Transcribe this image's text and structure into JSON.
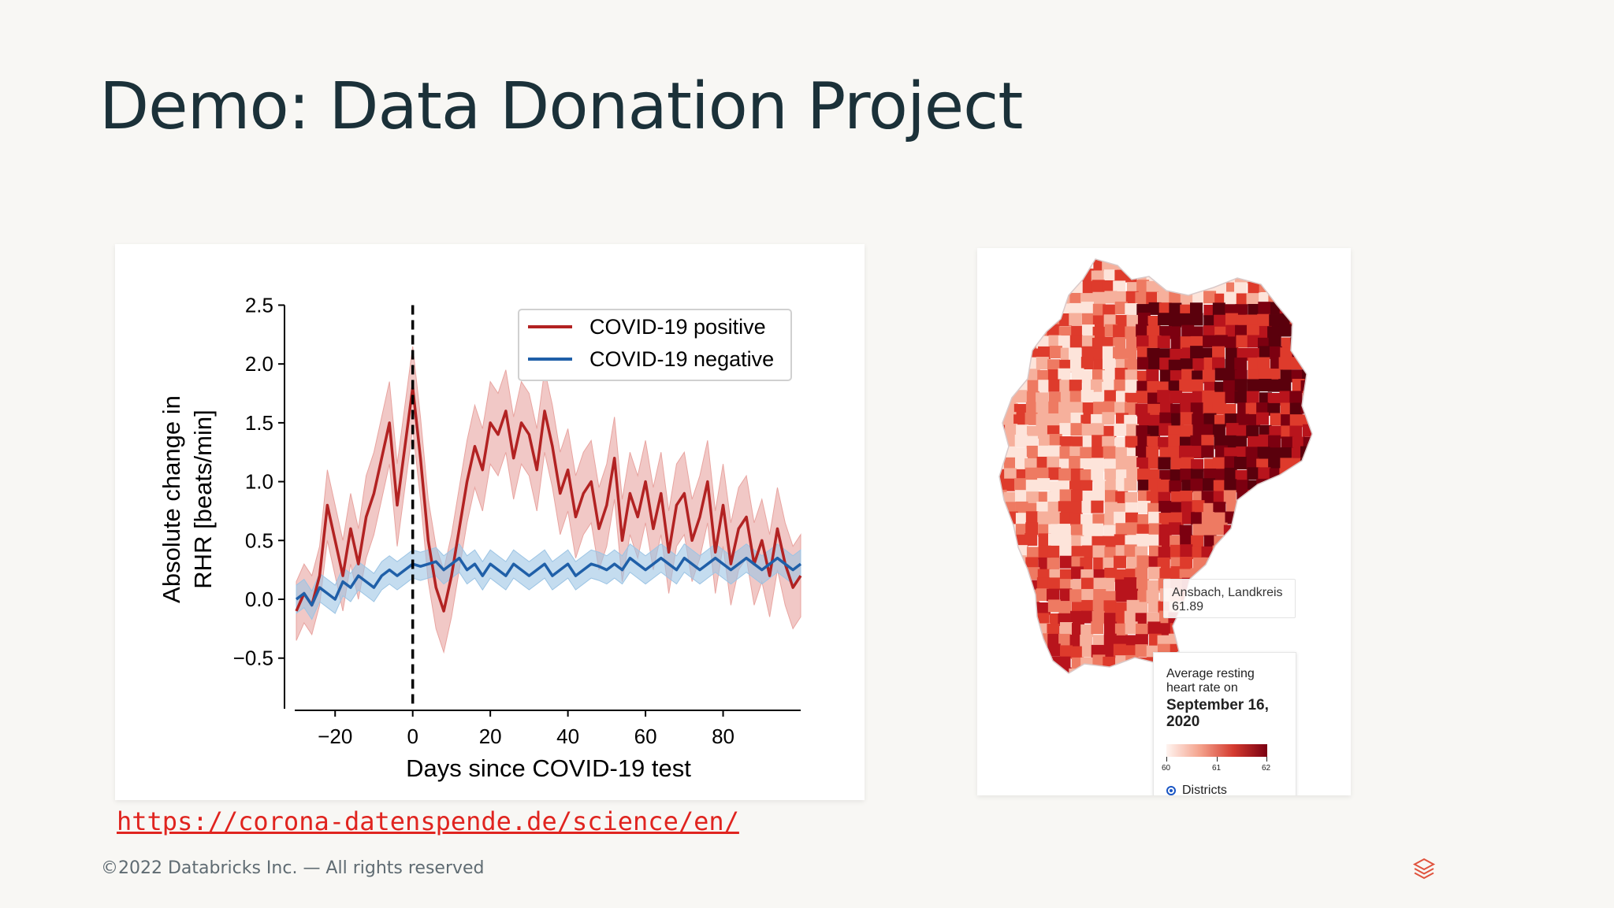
{
  "slide": {
    "title": "Demo: Data Donation Project",
    "link": "https://corona-datenspende.de/science/en/",
    "footer": "©2022 Databricks Inc. — All rights reserved",
    "logo_icon": "databricks-layers-icon"
  },
  "chart_data": {
    "type": "line",
    "title": "",
    "xlabel": "Days since COVID-19 test",
    "ylabel": "Absolute change in RHR [beats/min]",
    "xlim": [
      -30,
      100
    ],
    "ylim": [
      -0.85,
      2.55
    ],
    "xticks": [
      -20,
      0,
      20,
      40,
      60,
      80
    ],
    "xtick_labels": [
      "−20",
      "0",
      "20",
      "40",
      "60",
      "80"
    ],
    "yticks": [
      -0.5,
      0.0,
      0.5,
      1.0,
      1.5,
      2.0,
      2.5
    ],
    "ytick_labels": [
      "−0.5",
      "0.0",
      "0.5",
      "1.0",
      "1.5",
      "2.0",
      "2.5"
    ],
    "legend_position": "top-right",
    "vline": {
      "x": 0,
      "style": "dashed",
      "color": "#000000"
    },
    "series": [
      {
        "name": "COVID-19 positive",
        "color": "#b22222",
        "band_color": "#e8a4a0",
        "x": [
          -30,
          -28,
          -26,
          -24,
          -22,
          -20,
          -18,
          -16,
          -14,
          -12,
          -10,
          -8,
          -6,
          -4,
          -2,
          0,
          2,
          4,
          6,
          8,
          10,
          12,
          14,
          16,
          18,
          20,
          22,
          24,
          26,
          28,
          30,
          32,
          34,
          36,
          38,
          40,
          42,
          44,
          46,
          48,
          50,
          52,
          54,
          56,
          58,
          60,
          62,
          64,
          66,
          68,
          70,
          72,
          74,
          76,
          78,
          80,
          82,
          84,
          86,
          88,
          90,
          92,
          94,
          96,
          98,
          100
        ],
        "y": [
          -0.1,
          0.05,
          -0.05,
          0.2,
          0.8,
          0.5,
          0.2,
          0.6,
          0.3,
          0.7,
          0.9,
          1.2,
          1.5,
          0.8,
          1.3,
          1.8,
          1.2,
          0.5,
          0.1,
          -0.1,
          0.2,
          0.6,
          1.0,
          1.3,
          1.1,
          1.5,
          1.4,
          1.6,
          1.2,
          1.5,
          1.4,
          1.1,
          1.6,
          1.3,
          0.9,
          1.1,
          0.7,
          0.9,
          1.0,
          0.6,
          0.8,
          1.2,
          0.5,
          0.9,
          0.7,
          1.0,
          0.6,
          0.9,
          0.4,
          0.8,
          0.9,
          0.5,
          0.7,
          1.0,
          0.4,
          0.8,
          0.3,
          0.6,
          0.7,
          0.3,
          0.5,
          0.2,
          0.6,
          0.3,
          0.1,
          0.2
        ],
        "err": [
          0.25,
          0.25,
          0.25,
          0.25,
          0.3,
          0.3,
          0.3,
          0.3,
          0.3,
          0.35,
          0.35,
          0.35,
          0.35,
          0.35,
          0.35,
          0.35,
          0.35,
          0.35,
          0.35,
          0.35,
          0.35,
          0.35,
          0.35,
          0.35,
          0.35,
          0.35,
          0.35,
          0.35,
          0.35,
          0.35,
          0.35,
          0.35,
          0.35,
          0.35,
          0.35,
          0.35,
          0.35,
          0.35,
          0.35,
          0.35,
          0.35,
          0.35,
          0.35,
          0.35,
          0.35,
          0.35,
          0.35,
          0.35,
          0.35,
          0.35,
          0.35,
          0.35,
          0.35,
          0.35,
          0.35,
          0.35,
          0.35,
          0.35,
          0.35,
          0.35,
          0.35,
          0.35,
          0.35,
          0.35,
          0.35,
          0.35
        ]
      },
      {
        "name": "COVID-19 negative",
        "color": "#1f5fa8",
        "band_color": "#9cc4e4",
        "x": [
          -30,
          -28,
          -26,
          -24,
          -22,
          -20,
          -18,
          -16,
          -14,
          -12,
          -10,
          -8,
          -6,
          -4,
          -2,
          0,
          2,
          4,
          6,
          8,
          10,
          12,
          14,
          16,
          18,
          20,
          22,
          24,
          26,
          28,
          30,
          32,
          34,
          36,
          38,
          40,
          42,
          44,
          46,
          48,
          50,
          52,
          54,
          56,
          58,
          60,
          62,
          64,
          66,
          68,
          70,
          72,
          74,
          76,
          78,
          80,
          82,
          84,
          86,
          88,
          90,
          92,
          94,
          96,
          98,
          100
        ],
        "y": [
          0.0,
          0.05,
          -0.05,
          0.1,
          0.05,
          0.0,
          0.15,
          0.1,
          0.2,
          0.15,
          0.1,
          0.2,
          0.25,
          0.2,
          0.25,
          0.3,
          0.28,
          0.3,
          0.32,
          0.25,
          0.3,
          0.35,
          0.25,
          0.3,
          0.2,
          0.3,
          0.25,
          0.2,
          0.3,
          0.25,
          0.2,
          0.25,
          0.3,
          0.2,
          0.25,
          0.3,
          0.2,
          0.25,
          0.3,
          0.28,
          0.25,
          0.3,
          0.25,
          0.35,
          0.3,
          0.25,
          0.3,
          0.35,
          0.3,
          0.25,
          0.35,
          0.3,
          0.25,
          0.3,
          0.35,
          0.3,
          0.25,
          0.3,
          0.35,
          0.3,
          0.25,
          0.3,
          0.35,
          0.3,
          0.25,
          0.3
        ],
        "err": [
          0.12,
          0.12,
          0.12,
          0.12,
          0.12,
          0.12,
          0.12,
          0.12,
          0.12,
          0.12,
          0.12,
          0.12,
          0.12,
          0.12,
          0.12,
          0.12,
          0.12,
          0.12,
          0.12,
          0.12,
          0.12,
          0.12,
          0.12,
          0.12,
          0.12,
          0.12,
          0.12,
          0.12,
          0.12,
          0.12,
          0.12,
          0.12,
          0.12,
          0.12,
          0.12,
          0.12,
          0.12,
          0.12,
          0.12,
          0.12,
          0.12,
          0.12,
          0.12,
          0.12,
          0.12,
          0.12,
          0.12,
          0.12,
          0.12,
          0.12,
          0.12,
          0.12,
          0.12,
          0.12,
          0.12,
          0.12,
          0.12,
          0.12,
          0.12,
          0.12,
          0.12,
          0.12,
          0.12,
          0.12,
          0.12,
          0.12
        ]
      }
    ]
  },
  "map": {
    "tooltip": {
      "name": "Ansbach, Landkreis",
      "value": "61.89"
    },
    "legend": {
      "title": "Average resting heart rate on",
      "date": "September 16, 2020",
      "scale_min": "60",
      "scale_mid": "61",
      "scale_max": "62",
      "radio_label": "Districts"
    },
    "colors": [
      "#fde4da",
      "#f6b09c",
      "#ee7a62",
      "#de3b2c",
      "#b8141c",
      "#7c0010",
      "#5a000c"
    ]
  }
}
